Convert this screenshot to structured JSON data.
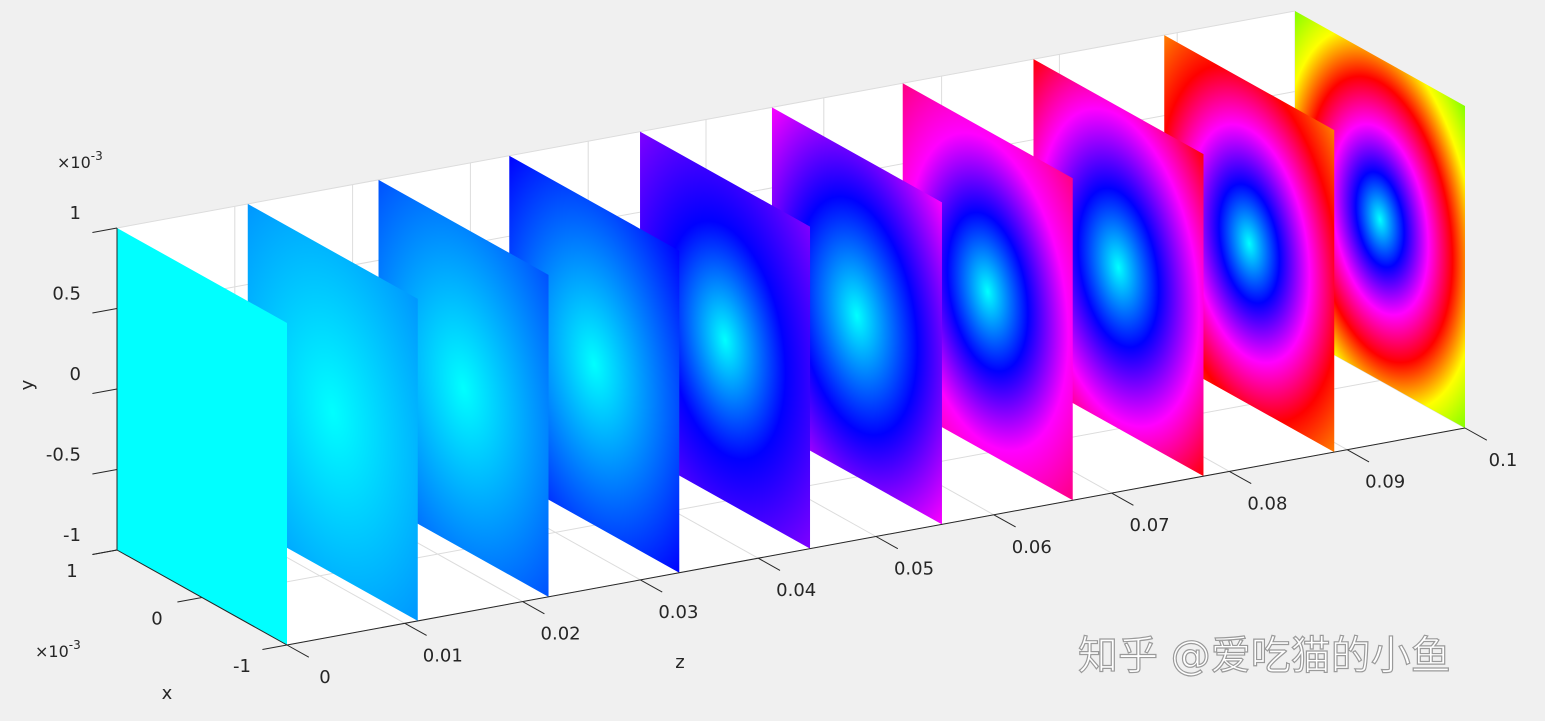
{
  "chart_data": {
    "type": "slice3d",
    "xlabel": "x",
    "ylabel": "y",
    "zlabel": "z",
    "xlim": [
      -1,
      1
    ],
    "ylim": [
      -1,
      1
    ],
    "zlim": [
      0,
      0.1
    ],
    "xticks": [
      -1,
      0,
      1
    ],
    "yticks": [
      -1,
      -0.5,
      0,
      0.5,
      1
    ],
    "zticks": [
      0,
      0.01,
      0.02,
      0.03,
      0.04,
      0.05,
      0.06,
      0.07,
      0.08,
      0.09,
      0.1
    ],
    "x_exponent": {
      "base": "×10",
      "power": "-3"
    },
    "y_exponent": {
      "base": "×10",
      "power": "-3"
    },
    "grid": true,
    "slices": [
      {
        "z": 0,
        "colors": [
          "#00ffff",
          "#00ffff"
        ]
      },
      {
        "z": 0.0111,
        "colors": [
          "#00ffff",
          "#0096ff"
        ]
      },
      {
        "z": 0.0222,
        "colors": [
          "#00ffff",
          "#0050ff"
        ]
      },
      {
        "z": 0.0333,
        "colors": [
          "#00ffff",
          "#0000ff"
        ]
      },
      {
        "z": 0.0444,
        "colors": [
          "#00ffff",
          "#0000ff",
          "#8000ff"
        ]
      },
      {
        "z": 0.0556,
        "colors": [
          "#00ffff",
          "#0000ff",
          "#ff00ff"
        ]
      },
      {
        "z": 0.0667,
        "colors": [
          "#00ffff",
          "#0000ff",
          "#ff00ff",
          "#ff0080"
        ]
      },
      {
        "z": 0.0778,
        "colors": [
          "#00ffff",
          "#0000ff",
          "#ff00ff",
          "#ff0000"
        ]
      },
      {
        "z": 0.0889,
        "colors": [
          "#00ffff",
          "#0000ff",
          "#ff00ff",
          "#ff0000",
          "#ff8000"
        ]
      },
      {
        "z": 0.1,
        "colors": [
          "#00ffff",
          "#0000ff",
          "#ff00ff",
          "#ff0000",
          "#ffff00",
          "#80ff00"
        ]
      }
    ]
  },
  "watermark": "知乎 @爱吃猫的小鱼"
}
